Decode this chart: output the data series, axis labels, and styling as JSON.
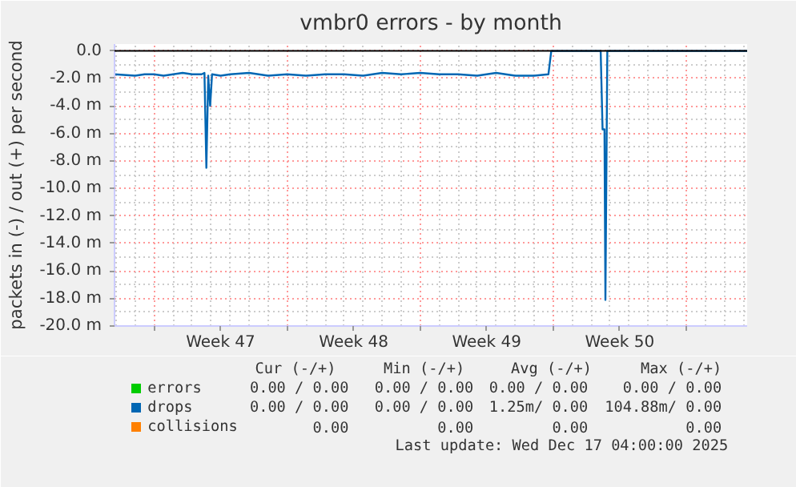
{
  "chart_data": {
    "type": "line",
    "title": "vmbr0 errors - by month",
    "ylabel": "packets in (-) / out (+) per second",
    "xlim": [
      "2025-11-14T22:00",
      "2025-12-18T05:00"
    ],
    "ylim": [
      -20,
      0.5
    ],
    "xticks": [
      {
        "value": "2025-11-17",
        "label": null
      },
      {
        "value": "2025-11-20T12:00",
        "label": "Week 47"
      },
      {
        "value": "2025-11-24",
        "label": null
      },
      {
        "value": "2025-11-27T12:00",
        "label": "Week 48"
      },
      {
        "value": "2025-12-01",
        "label": null
      },
      {
        "value": "2025-12-04T12:00",
        "label": "Week 49"
      },
      {
        "value": "2025-12-08",
        "label": null
      },
      {
        "value": "2025-12-11T12:00",
        "label": "Week 50"
      },
      {
        "value": "2025-12-15",
        "label": null
      }
    ],
    "yticks": [
      {
        "value": -20,
        "label": "-20.0 m"
      },
      {
        "value": -18,
        "label": "-18.0 m"
      },
      {
        "value": -16,
        "label": "-16.0 m"
      },
      {
        "value": -14,
        "label": "-14.0 m"
      },
      {
        "value": -12,
        "label": "-12.0 m"
      },
      {
        "value": -10,
        "label": "-10.0 m"
      },
      {
        "value": -8,
        "label": "-8.0 m"
      },
      {
        "value": -6,
        "label": "-6.0 m"
      },
      {
        "value": -4,
        "label": "-4.0 m"
      },
      {
        "value": -2,
        "label": "-2.0 m"
      },
      {
        "value": 0,
        "label": "0.0"
      }
    ],
    "grid": true,
    "legend": "bottom",
    "series": [
      {
        "name": "errors",
        "color": "#00cc00"
      },
      {
        "name": "drops",
        "color": "#0066b3",
        "x": [
          "2025-11-14T22:00",
          "2025-11-16",
          "2025-11-16T12:00",
          "2025-11-17",
          "2025-11-17T12:00",
          "2025-11-18",
          "2025-11-18T12:00",
          "2025-11-19",
          "2025-11-19T12:00",
          "2025-11-19T15:36",
          "2025-11-19T18:00",
          "2025-11-19T20:24",
          "2025-11-19T22:48",
          "2025-11-20T01:12",
          "2025-11-20T12:00",
          "2025-11-21",
          "2025-11-22",
          "2025-11-23",
          "2025-11-24",
          "2025-11-25",
          "2025-11-26",
          "2025-11-27",
          "2025-11-28",
          "2025-11-29",
          "2025-11-30",
          "2025-12-01",
          "2025-12-02",
          "2025-12-03",
          "2025-12-04",
          "2025-12-05",
          "2025-12-06",
          "2025-12-07",
          "2025-12-07T18:00",
          "2025-12-07T21:36",
          "2025-12-10T12:00",
          "2025-12-10T14:24",
          "2025-12-10T16:48",
          "2025-12-10T18:00",
          "2025-12-10T20:24",
          "2025-12-18T05:00"
        ],
        "values": [
          -1.7,
          -1.8,
          -1.7,
          -1.7,
          -1.8,
          -1.7,
          -1.6,
          -1.7,
          -1.7,
          -1.6,
          -8.5,
          -1.8,
          -4.0,
          -1.7,
          -1.8,
          -1.7,
          -1.6,
          -1.8,
          -1.7,
          -1.8,
          -1.7,
          -1.7,
          -1.8,
          -1.6,
          -1.7,
          -1.6,
          -1.7,
          -1.7,
          -1.8,
          -1.6,
          -1.8,
          -1.8,
          -1.7,
          0,
          0,
          -5.7,
          -5.7,
          -18.1,
          0,
          0
        ]
      },
      {
        "name": "collisions",
        "color": "#ff8000"
      }
    ],
    "ref_lines": [
      {
        "axis": "y",
        "value": 0,
        "color": "#000000"
      }
    ],
    "annotations": [
      "Cur (-/+)",
      "Min (-/+)",
      "Avg (-/+)",
      "Max (-/+)",
      "0.00 / 0.00",
      "0.00 / 0.00",
      "0.00 / 0.00",
      "0.00 / 0.00",
      "0.00 / 0.00",
      "0.00 / 0.00",
      "1.25m/ 0.00",
      "104.88m/ 0.00",
      "0.00",
      "0.00",
      "0.00",
      "0.00",
      "Last update: Wed Dec 17 04:00:00 2025"
    ]
  }
}
